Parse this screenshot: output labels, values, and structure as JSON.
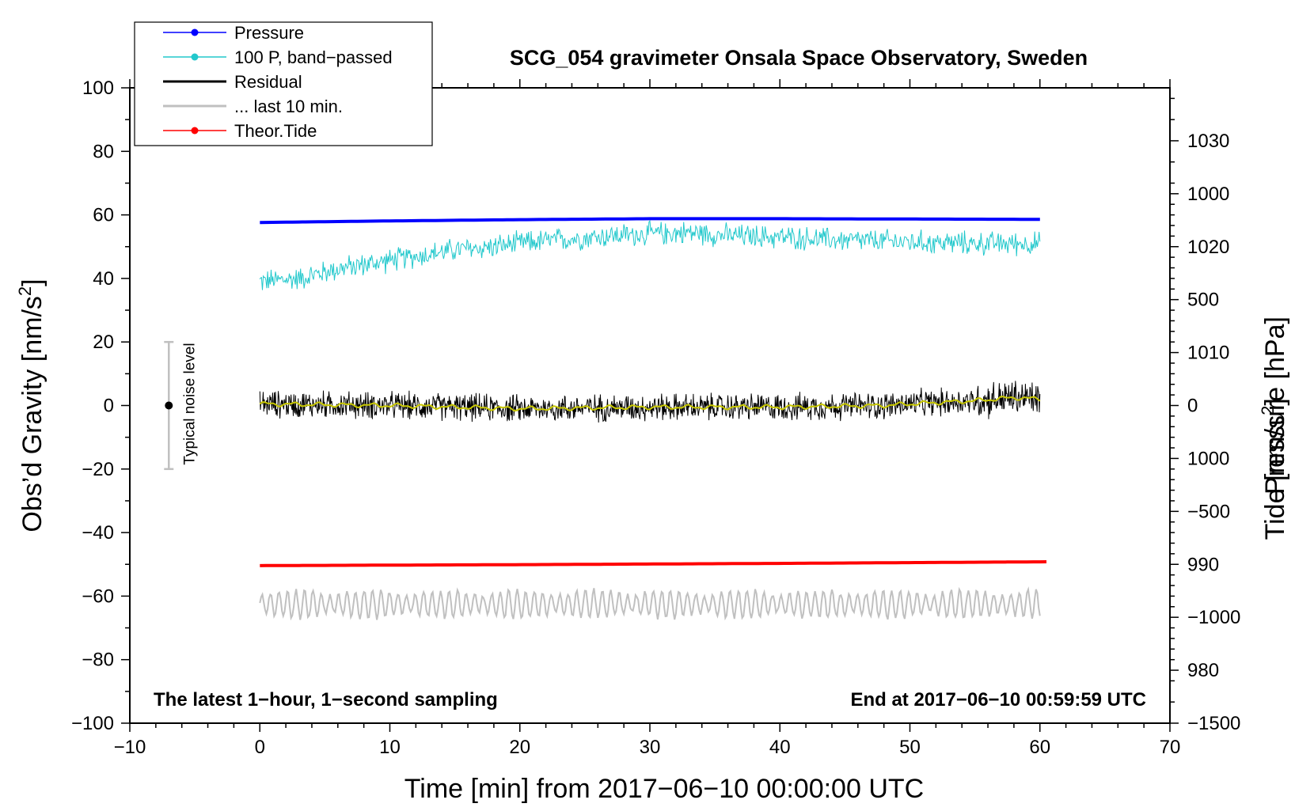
{
  "chart_data": {
    "type": "line",
    "title": "SCG_054 gravimeter Onsala Space Observatory, Sweden",
    "xlabel": "Time [min] from 2017−06−10 00:00:00 UTC",
    "ylabel_left": "Obs’d Gravity [nm/s",
    "ylabel_left_sup": "2",
    "ylabel_left_end": "]",
    "ylabel_right_pressure": "Pressure [hPa]",
    "ylabel_right_tide": "Tide [nm/s",
    "ylabel_right_tide_sup": "2",
    "ylabel_right_tide_end": "]",
    "xlim": [
      -10,
      70
    ],
    "ylim_left": [
      -100,
      100
    ],
    "pressure_range": [
      975,
      1035
    ],
    "tide_range": [
      -1500,
      1500
    ],
    "x_ticks": [
      {
        "value": -10,
        "label": "−10"
      },
      {
        "value": 0,
        "label": "0"
      },
      {
        "value": 10,
        "label": "10"
      },
      {
        "value": 20,
        "label": "20"
      },
      {
        "value": 30,
        "label": "30"
      },
      {
        "value": 40,
        "label": "40"
      },
      {
        "value": 50,
        "label": "50"
      },
      {
        "value": 60,
        "label": "60"
      },
      {
        "value": 70,
        "label": "70"
      }
    ],
    "y_left_ticks": [
      {
        "value": 100,
        "label": "100"
      },
      {
        "value": 80,
        "label": "80"
      },
      {
        "value": 60,
        "label": "60"
      },
      {
        "value": 40,
        "label": "40"
      },
      {
        "value": 20,
        "label": "20"
      },
      {
        "value": 0,
        "label": "0"
      },
      {
        "value": -20,
        "label": "−20"
      },
      {
        "value": -40,
        "label": "−40"
      },
      {
        "value": -60,
        "label": "−60"
      },
      {
        "value": -80,
        "label": "−80"
      },
      {
        "value": -100,
        "label": "−100"
      }
    ],
    "y_pressure_ticks": [
      {
        "value": 1030,
        "label": "1030"
      },
      {
        "value": 1020,
        "label": "1020"
      },
      {
        "value": 1010,
        "label": "1010"
      },
      {
        "value": 1000,
        "label": "1000"
      },
      {
        "value": 990,
        "label": "990"
      },
      {
        "value": 980,
        "label": "980"
      }
    ],
    "y_tide_ticks": [
      {
        "value": 1000,
        "label": "1000"
      },
      {
        "value": 500,
        "label": "500"
      },
      {
        "value": 0,
        "label": "0"
      },
      {
        "value": -500,
        "label": "−500"
      },
      {
        "value": -1000,
        "label": "−1000"
      },
      {
        "value": -1500,
        "label": "−1500"
      }
    ],
    "legend": [
      {
        "label": "Pressure",
        "color": "#0000ff",
        "marker": true
      },
      {
        "label": "100 P, band−passed",
        "color": "#22c8cc",
        "marker": true
      },
      {
        "label": "Residual",
        "color": "#000000",
        "marker": false
      },
      {
        "label": "... last 10 min.",
        "color": "#c0c0c0",
        "marker": false
      },
      {
        "label": "Theor.Tide",
        "color": "#ff0000",
        "marker": true
      }
    ],
    "annotations": {
      "left": "The latest 1−hour, 1−second sampling",
      "right": "End at 2017−06−10 00:59:59 UTC",
      "noise_label": "Typical noise level"
    },
    "noise_bar": {
      "x": -7,
      "center": 0,
      "low": -20,
      "high": 20
    },
    "series": [
      {
        "name": "Pressure",
        "color": "#0000ff",
        "x_range": [
          0,
          60
        ],
        "points": [
          [
            0,
            57.6
          ],
          [
            10,
            58.1
          ],
          [
            20,
            58.5
          ],
          [
            30,
            58.8
          ],
          [
            40,
            58.8
          ],
          [
            50,
            58.7
          ],
          [
            60,
            58.6
          ]
        ]
      },
      {
        "name": "100 P, band-passed",
        "color": "#22c8cc",
        "x_range": [
          0,
          60
        ],
        "trend": [
          [
            0,
            39
          ],
          [
            3,
            40
          ],
          [
            6,
            43
          ],
          [
            9,
            45
          ],
          [
            12,
            47
          ],
          [
            15,
            49
          ],
          [
            18,
            50
          ],
          [
            21,
            51.5
          ],
          [
            24,
            52.5
          ],
          [
            27,
            53.5
          ],
          [
            30,
            54
          ],
          [
            33,
            54.5
          ],
          [
            36,
            53.5
          ],
          [
            40,
            53
          ],
          [
            45,
            52
          ],
          [
            50,
            51.5
          ],
          [
            55,
            51
          ],
          [
            60,
            51
          ]
        ],
        "amplitude": 3
      },
      {
        "name": "Residual",
        "color": "#000000",
        "x_range": [
          0,
          60
        ],
        "mean": 0,
        "amplitude": 4
      },
      {
        "name": "Residual smoothed",
        "color": "#c8c800",
        "x_range": [
          0,
          60
        ],
        "trend": [
          [
            0,
            0.5
          ],
          [
            10,
            0
          ],
          [
            20,
            -1
          ],
          [
            30,
            -0.5
          ],
          [
            40,
            -0.5
          ],
          [
            48,
            0
          ],
          [
            50,
            0.5
          ],
          [
            55,
            1.5
          ],
          [
            58,
            2.5
          ],
          [
            60,
            2
          ]
        ]
      },
      {
        "name": "... last 10 min.",
        "color": "#c0c0c0",
        "x_range": [
          0,
          60
        ],
        "mean": -62.5,
        "amplitude": 4.5
      },
      {
        "name": "Theor.Tide",
        "color": "#ff0000",
        "x_range": [
          0,
          60.5
        ],
        "points": [
          [
            0,
            -50.4
          ],
          [
            20,
            -50.1
          ],
          [
            40,
            -49.7
          ],
          [
            60.5,
            -49.2
          ]
        ]
      }
    ]
  }
}
